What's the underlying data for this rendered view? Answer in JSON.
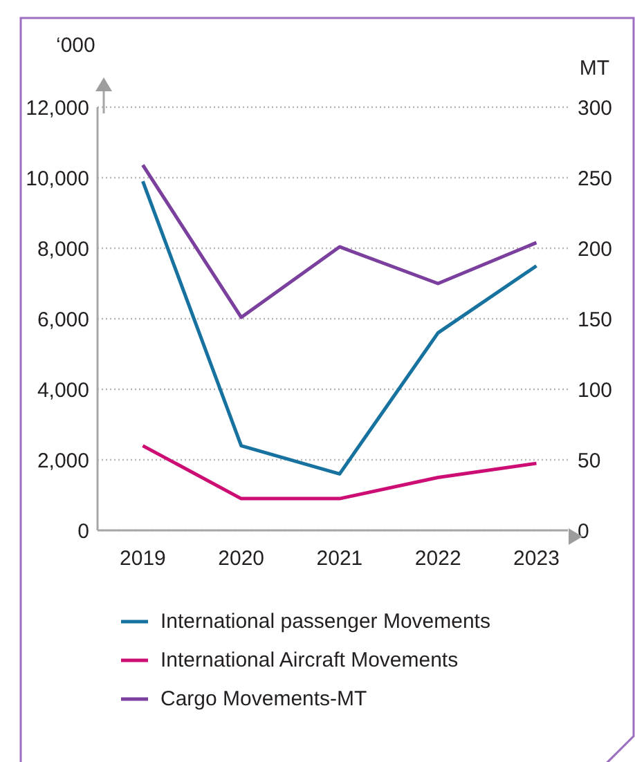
{
  "chart_data": {
    "type": "line",
    "ylabel": "‘000",
    "y2label": "MT",
    "categories": [
      "2019",
      "2020",
      "2021",
      "2022",
      "2023"
    ],
    "series": [
      {
        "name": "International passenger Movements",
        "color": "#17729f",
        "values": [
          9900,
          2400,
          1600,
          5600,
          7500
        ]
      },
      {
        "name": "International Aircraft Movements",
        "color": "#cc0e74",
        "values": [
          2400,
          900,
          900,
          1500,
          1900
        ]
      },
      {
        "name": "Cargo Movements-MT",
        "color": "#7b3f9e",
        "values": [
          259,
          151,
          201,
          175,
          204
        ],
        "axis": "y2"
      }
    ],
    "ylim": [
      0,
      12000
    ],
    "yticks": [
      0,
      {
        "value": 2000,
        "label": "2,000"
      },
      {
        "value": 4000,
        "label": "4,000"
      },
      {
        "value": 6000,
        "label": "6,000"
      },
      {
        "value": 8000,
        "label": "8,000"
      },
      {
        "value": 10000,
        "label": "10,000"
      },
      {
        "value": 12000,
        "label": "12,000"
      }
    ],
    "y2lim": [
      0,
      300
    ],
    "y2ticks": [
      0,
      50,
      100,
      150,
      200,
      250,
      300
    ],
    "grid": "y",
    "legend": "bottom",
    "line_style": "solid"
  }
}
